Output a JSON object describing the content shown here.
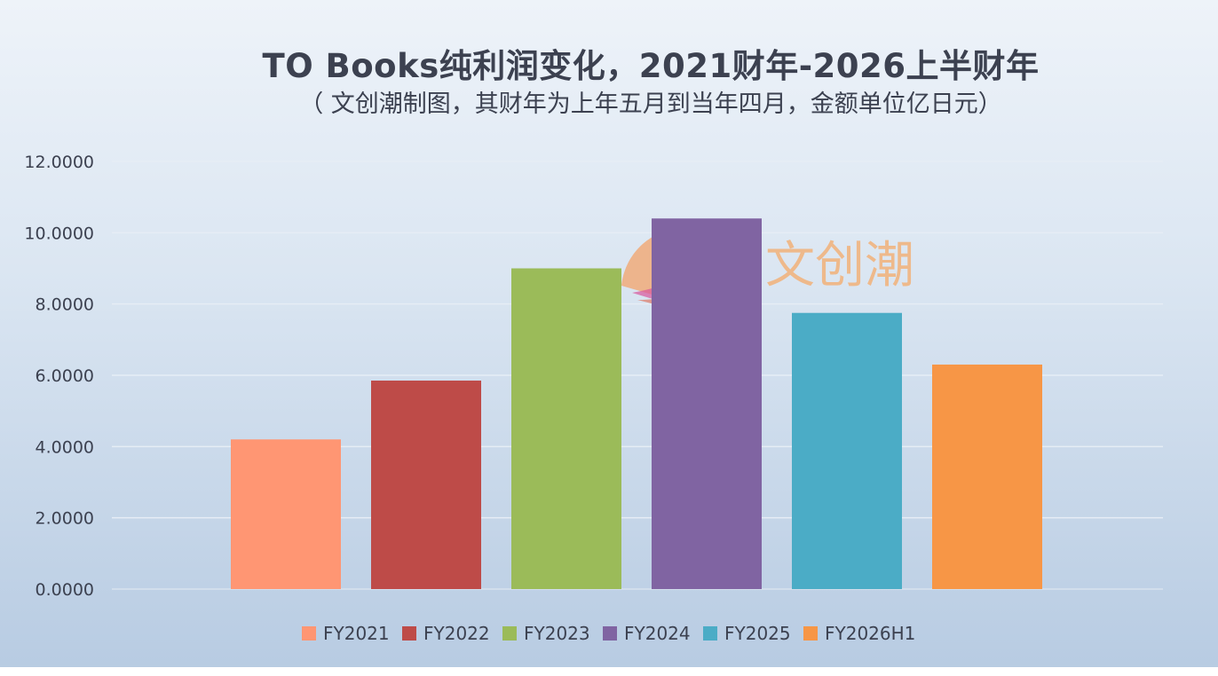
{
  "chart_data": {
    "type": "bar",
    "title": "TO Books纯利润变化，2021财年-2026上半财年",
    "subtitle": "（ 文创潮制图，其财年为上年五月到当年四月，金额单位亿日元）",
    "categories": [
      "FY2021",
      "FY2022",
      "FY2023",
      "FY2024",
      "FY2025",
      "FY2026H1"
    ],
    "values": [
      4.2,
      5.85,
      9.0,
      10.4,
      7.75,
      6.3
    ],
    "colors": [
      "#ff9673",
      "#be4b48",
      "#9bbb59",
      "#8064a2",
      "#4bacc6",
      "#f79646"
    ],
    "ylim": [
      0,
      12
    ],
    "yticks": [
      "0.0000",
      "2.0000",
      "4.0000",
      "6.0000",
      "8.0000",
      "10.0000",
      "12.0000"
    ],
    "legend_position": "bottom",
    "grid": true
  },
  "watermark": {
    "text": "文创潮"
  }
}
